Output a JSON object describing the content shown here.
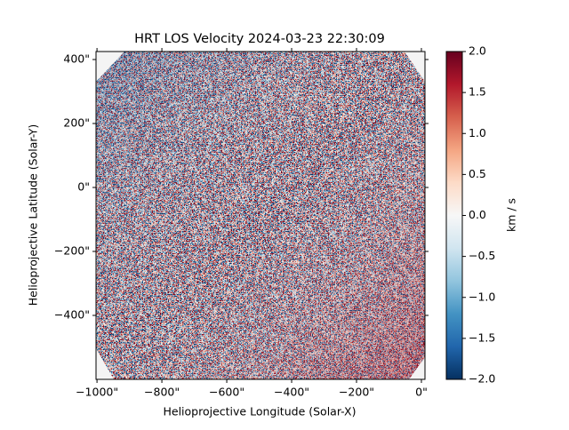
{
  "chart_data": {
    "type": "image",
    "title": "HRT LOS Velocity 2024-03-23 22:30:09",
    "x_label": "Helioprojective Longitude (Solar-X)",
    "y_label": "Helioprojective Latitude (Solar-Y)",
    "xlim": [
      -1003,
      11
    ],
    "ylim": [
      -600,
      425
    ],
    "xticks": [
      {
        "value": -1000,
        "label": "−1000\""
      },
      {
        "value": -800,
        "label": "−800\""
      },
      {
        "value": -600,
        "label": "−600\""
      },
      {
        "value": -400,
        "label": "−400\""
      },
      {
        "value": -200,
        "label": "−200\""
      },
      {
        "value": 0,
        "label": "0\""
      }
    ],
    "yticks": [
      {
        "value": -400,
        "label": "−400\""
      },
      {
        "value": -200,
        "label": "−200\""
      },
      {
        "value": 0,
        "label": "0\""
      },
      {
        "value": 200,
        "label": "200\""
      },
      {
        "value": 400,
        "label": "400\""
      }
    ],
    "colorbar_label": "km / s",
    "clim": [
      -2,
      2
    ],
    "colorbar_ticks": [
      {
        "value": -2,
        "label": "−2.0"
      },
      {
        "value": -1.5,
        "label": "−1.5"
      },
      {
        "value": -1,
        "label": "−1.0"
      },
      {
        "value": -0.5,
        "label": "−0.5"
      },
      {
        "value": 0,
        "label": "0.0"
      },
      {
        "value": 0.5,
        "label": "0.5"
      },
      {
        "value": 1,
        "label": "1.0"
      },
      {
        "value": 1.5,
        "label": "1.5"
      },
      {
        "value": 2,
        "label": "2.0"
      }
    ],
    "colormap": [
      "#053061",
      "#2166ac",
      "#4393c3",
      "#92c5de",
      "#d1e5f0",
      "#f7f7f7",
      "#fddbc7",
      "#f4a582",
      "#d6604d",
      "#b2182b",
      "#67001f"
    ]
  }
}
